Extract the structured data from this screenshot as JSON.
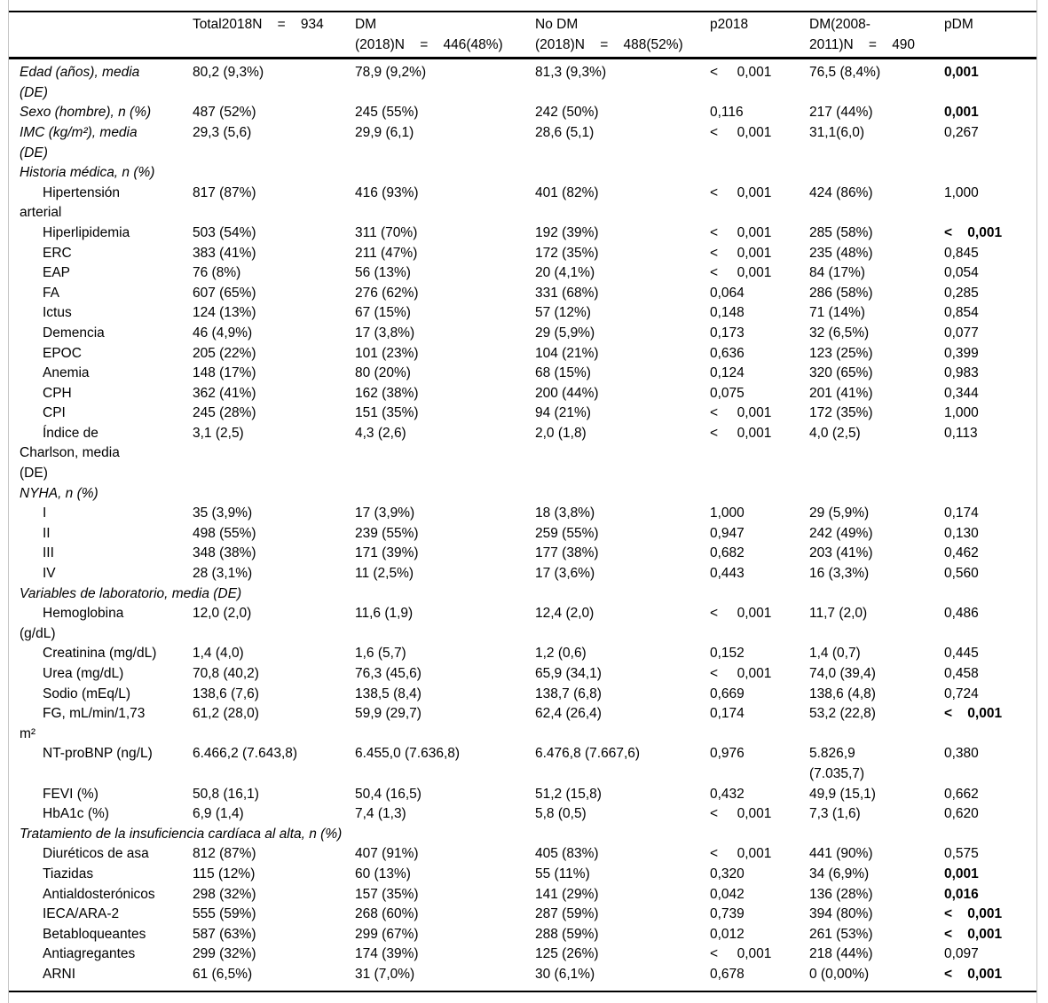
{
  "table": {
    "columns": [
      {
        "id": "label",
        "header_lines": [
          ""
        ]
      },
      {
        "id": "total",
        "header_lines": [
          "Total2018N    =    934"
        ]
      },
      {
        "id": "dm2018",
        "header_lines": [
          "DM",
          "(2018)N    =    446(48%)"
        ]
      },
      {
        "id": "nodm2018",
        "header_lines": [
          "No DM",
          "(2018)N    =    488(52%)"
        ]
      },
      {
        "id": "p2018",
        "header_lines": [
          "p2018"
        ]
      },
      {
        "id": "dm2008",
        "header_lines": [
          "DM(2008-",
          "2011)N    =    490"
        ]
      },
      {
        "id": "pdm",
        "header_lines": [
          "pDM"
        ]
      }
    ],
    "rows": [
      {
        "style": "var",
        "label_lines": [
          "Edad (años), media",
          "(DE)"
        ],
        "total": "80,2 (9,3%)",
        "dm2018": "78,9 (9,2%)",
        "nodm2018": "81,3 (9,3%)",
        "p2018": "<     0,001",
        "dm2008": "76,5 (8,4%)",
        "pdm": "0,001",
        "pdm_bold": true
      },
      {
        "style": "var",
        "label_lines": [
          "Sexo (hombre), n (%)"
        ],
        "total": "487 (52%)",
        "dm2018": "245 (55%)",
        "nodm2018": "242 (50%)",
        "p2018": "0,116",
        "dm2008": "217 (44%)",
        "pdm": "0,001",
        "pdm_bold": true
      },
      {
        "style": "var",
        "label_lines": [
          "IMC (kg/m²), media",
          "(DE)"
        ],
        "total": "29,3 (5,6)",
        "dm2018": "29,9 (6,1)",
        "nodm2018": "28,6 (5,1)",
        "p2018": "<     0,001",
        "dm2008": "31,1(6,0)",
        "pdm": "0,267",
        "pdm_bold": false
      },
      {
        "style": "sec",
        "label_lines": [
          "Historia médica, n (%)"
        ]
      },
      {
        "style": "item",
        "label_lines": [
          "Hipertensión",
          "arterial"
        ],
        "total": "817 (87%)",
        "dm2018": "416 (93%)",
        "nodm2018": "401 (82%)",
        "p2018": "<     0,001",
        "dm2008": "424 (86%)",
        "pdm": "1,000",
        "pdm_bold": false
      },
      {
        "style": "item",
        "label_lines": [
          "Hiperlipidemia"
        ],
        "total": "503 (54%)",
        "dm2018": "311 (70%)",
        "nodm2018": "192 (39%)",
        "p2018": "<     0,001",
        "dm2008": "285 (58%)",
        "pdm": "<    0,001",
        "pdm_bold": true
      },
      {
        "style": "item",
        "label_lines": [
          "ERC"
        ],
        "total": "383 (41%)",
        "dm2018": "211 (47%)",
        "nodm2018": "172 (35%)",
        "p2018": "<     0,001",
        "dm2008": "235 (48%)",
        "pdm": "0,845",
        "pdm_bold": false
      },
      {
        "style": "item",
        "label_lines": [
          "EAP"
        ],
        "total": "76 (8%)",
        "dm2018": "56 (13%)",
        "nodm2018": "20 (4,1%)",
        "p2018": "<     0,001",
        "dm2008": "84 (17%)",
        "pdm": "0,054",
        "pdm_bold": false
      },
      {
        "style": "item",
        "label_lines": [
          "FA"
        ],
        "total": "607 (65%)",
        "dm2018": "276 (62%)",
        "nodm2018": "331 (68%)",
        "p2018": "0,064",
        "dm2008": "286 (58%)",
        "pdm": "0,285",
        "pdm_bold": false
      },
      {
        "style": "item",
        "label_lines": [
          "Ictus"
        ],
        "total": "124 (13%)",
        "dm2018": "67 (15%)",
        "nodm2018": "57 (12%)",
        "p2018": "0,148",
        "dm2008": "71 (14%)",
        "pdm": "0,854",
        "pdm_bold": false
      },
      {
        "style": "item",
        "label_lines": [
          "Demencia"
        ],
        "total": "46 (4,9%)",
        "dm2018": "17 (3,8%)",
        "nodm2018": "29 (5,9%)",
        "p2018": "0,173",
        "dm2008": "32 (6,5%)",
        "pdm": "0,077",
        "pdm_bold": false
      },
      {
        "style": "item",
        "label_lines": [
          "EPOC"
        ],
        "total": "205 (22%)",
        "dm2018": "101 (23%)",
        "nodm2018": "104 (21%)",
        "p2018": "0,636",
        "dm2008": "123 (25%)",
        "pdm": "0,399",
        "pdm_bold": false
      },
      {
        "style": "item",
        "label_lines": [
          "Anemia"
        ],
        "total": "148 (17%)",
        "dm2018": "80 (20%)",
        "nodm2018": "68 (15%)",
        "p2018": "0,124",
        "dm2008": "320 (65%)",
        "pdm": "0,983",
        "pdm_bold": false
      },
      {
        "style": "item",
        "label_lines": [
          "CPH"
        ],
        "total": "362 (41%)",
        "dm2018": "162 (38%)",
        "nodm2018": "200 (44%)",
        "p2018": "0,075",
        "dm2008": "201 (41%)",
        "pdm": "0,344",
        "pdm_bold": false
      },
      {
        "style": "item",
        "label_lines": [
          "CPI"
        ],
        "total": "245 (28%)",
        "dm2018": "151 (35%)",
        "nodm2018": "94 (21%)",
        "p2018": "<     0,001",
        "dm2008": "172 (35%)",
        "pdm": "1,000",
        "pdm_bold": false
      },
      {
        "style": "item",
        "label_lines": [
          "Índice de",
          "Charlson, media",
          "(DE)"
        ],
        "total": "3,1 (2,5)",
        "dm2018": "4,3 (2,6)",
        "nodm2018": "2,0 (1,8)",
        "p2018": "<     0,001",
        "dm2008": "4,0 (2,5)",
        "pdm": "0,113",
        "pdm_bold": false
      },
      {
        "style": "sec",
        "label_lines": [
          "NYHA, n (%)"
        ]
      },
      {
        "style": "item",
        "label_lines": [
          "I"
        ],
        "total": "35 (3,9%)",
        "dm2018": "17 (3,9%)",
        "nodm2018": "18 (3,8%)",
        "p2018": "1,000",
        "dm2008": "29 (5,9%)",
        "pdm": "0,174",
        "pdm_bold": false
      },
      {
        "style": "item",
        "label_lines": [
          "II"
        ],
        "total": "498 (55%)",
        "dm2018": "239 (55%)",
        "nodm2018": "259 (55%)",
        "p2018": "0,947",
        "dm2008": "242 (49%)",
        "pdm": "0,130",
        "pdm_bold": false
      },
      {
        "style": "item",
        "label_lines": [
          "III"
        ],
        "total": "348 (38%)",
        "dm2018": "171 (39%)",
        "nodm2018": "177 (38%)",
        "p2018": "0,682",
        "dm2008": "203 (41%)",
        "pdm": "0,462",
        "pdm_bold": false
      },
      {
        "style": "item",
        "label_lines": [
          "IV"
        ],
        "total": "28 (3,1%)",
        "dm2018": "11 (2,5%)",
        "nodm2018": "17 (3,6%)",
        "p2018": "0,443",
        "dm2008": "16 (3,3%)",
        "pdm": "0,560",
        "pdm_bold": false
      },
      {
        "style": "sec",
        "label_lines": [
          "Variables de laboratorio, media (DE)"
        ]
      },
      {
        "style": "item",
        "label_lines": [
          "Hemoglobina",
          "(g/dL)"
        ],
        "total": "12,0 (2,0)",
        "dm2018": "11,6 (1,9)",
        "nodm2018": "12,4 (2,0)",
        "p2018": "<     0,001",
        "dm2008": "11,7 (2,0)",
        "pdm": "0,486",
        "pdm_bold": false
      },
      {
        "style": "item",
        "label_lines": [
          "Creatinina (mg/dL)"
        ],
        "total": "1,4 (4,0)",
        "dm2018": "1,6 (5,7)",
        "nodm2018": "1,2 (0,6)",
        "p2018": "0,152",
        "dm2008": "1,4 (0,7)",
        "pdm": "0,445",
        "pdm_bold": false
      },
      {
        "style": "item",
        "label_lines": [
          "Urea (mg/dL)"
        ],
        "total": "70,8 (40,2)",
        "dm2018": "76,3 (45,6)",
        "nodm2018": "65,9 (34,1)",
        "p2018": "<     0,001",
        "dm2008": "74,0 (39,4)",
        "pdm": "0,458",
        "pdm_bold": false
      },
      {
        "style": "item",
        "label_lines": [
          "Sodio (mEq/L)"
        ],
        "total": "138,6 (7,6)",
        "dm2018": "138,5 (8,4)",
        "nodm2018": "138,7 (6,8)",
        "p2018": "0,669",
        "dm2008": "138,6 (4,8)",
        "pdm": "0,724",
        "pdm_bold": false
      },
      {
        "style": "item",
        "label_lines": [
          "FG, mL/min/1,73",
          "m²"
        ],
        "total": "61,2 (28,0)",
        "dm2018": "59,9 (29,7)",
        "nodm2018": "62,4 (26,4)",
        "p2018": "0,174",
        "dm2008": "53,2 (22,8)",
        "pdm": "<    0,001",
        "pdm_bold": true
      },
      {
        "style": "item",
        "label_lines": [
          "NT-proBNP (ng/L)"
        ],
        "total": "6.466,2 (7.643,8)",
        "dm2018": "6.455,0 (7.636,8)",
        "nodm2018": "6.476,8 (7.667,6)",
        "p2018": "0,976",
        "dm2008": [
          "5.826,9",
          "(7.035,7)"
        ],
        "pdm": "0,380",
        "pdm_bold": false
      },
      {
        "style": "item",
        "label_lines": [
          "FEVI (%)"
        ],
        "total": "50,8 (16,1)",
        "dm2018": "50,4 (16,5)",
        "nodm2018": "51,2 (15,8)",
        "p2018": "0,432",
        "dm2008": "49,9 (15,1)",
        "pdm": "0,662",
        "pdm_bold": false
      },
      {
        "style": "item",
        "label_lines": [
          "HbA1c (%)"
        ],
        "total": "6,9 (1,4)",
        "dm2018": "7,4 (1,3)",
        "nodm2018": "5,8 (0,5)",
        "p2018": "<     0,001",
        "dm2008": "7,3 (1,6)",
        "pdm": "0,620",
        "pdm_bold": false
      },
      {
        "style": "sec",
        "label_lines": [
          "Tratamiento de la insuficiencia cardíaca al alta, n (%)"
        ]
      },
      {
        "style": "item",
        "label_lines": [
          "Diuréticos de asa"
        ],
        "total": "812 (87%)",
        "dm2018": "407 (91%)",
        "nodm2018": "405 (83%)",
        "p2018": "<     0,001",
        "dm2008": "441 (90%)",
        "pdm": "0,575",
        "pdm_bold": false
      },
      {
        "style": "item",
        "label_lines": [
          "Tiazidas"
        ],
        "total": "115 (12%)",
        "dm2018": "60 (13%)",
        "nodm2018": "55 (11%)",
        "p2018": "0,320",
        "dm2008": "34 (6,9%)",
        "pdm": "0,001",
        "pdm_bold": true
      },
      {
        "style": "item",
        "label_lines": [
          "Antialdosterónicos"
        ],
        "total": "298 (32%)",
        "dm2018": "157 (35%)",
        "nodm2018": "141 (29%)",
        "p2018": "0,042",
        "dm2008": "136 (28%)",
        "pdm": "0,016",
        "pdm_bold": true
      },
      {
        "style": "item",
        "label_lines": [
          "IECA/ARA-2"
        ],
        "total": "555 (59%)",
        "dm2018": "268 (60%)",
        "nodm2018": "287 (59%)",
        "p2018": "0,739",
        "dm2008": "394 (80%)",
        "pdm": "<    0,001",
        "pdm_bold": true
      },
      {
        "style": "item",
        "label_lines": [
          "Betabloqueantes"
        ],
        "total": "587 (63%)",
        "dm2018": "299 (67%)",
        "nodm2018": "288 (59%)",
        "p2018": "0,012",
        "dm2008": "261 (53%)",
        "pdm": "<    0,001",
        "pdm_bold": true
      },
      {
        "style": "item",
        "label_lines": [
          "Antiagregantes"
        ],
        "total": "299 (32%)",
        "dm2018": "174 (39%)",
        "nodm2018": "125 (26%)",
        "p2018": "<     0,001",
        "dm2008": "218 (44%)",
        "pdm": "0,097",
        "pdm_bold": false
      },
      {
        "style": "item",
        "label_lines": [
          "ARNI"
        ],
        "total": "61 (6,5%)",
        "dm2018": "31 (7,0%)",
        "nodm2018": "30 (6,1%)",
        "p2018": "0,678",
        "dm2008": "0 (0,00%)",
        "pdm": "<    0,001",
        "pdm_bold": true
      }
    ]
  }
}
